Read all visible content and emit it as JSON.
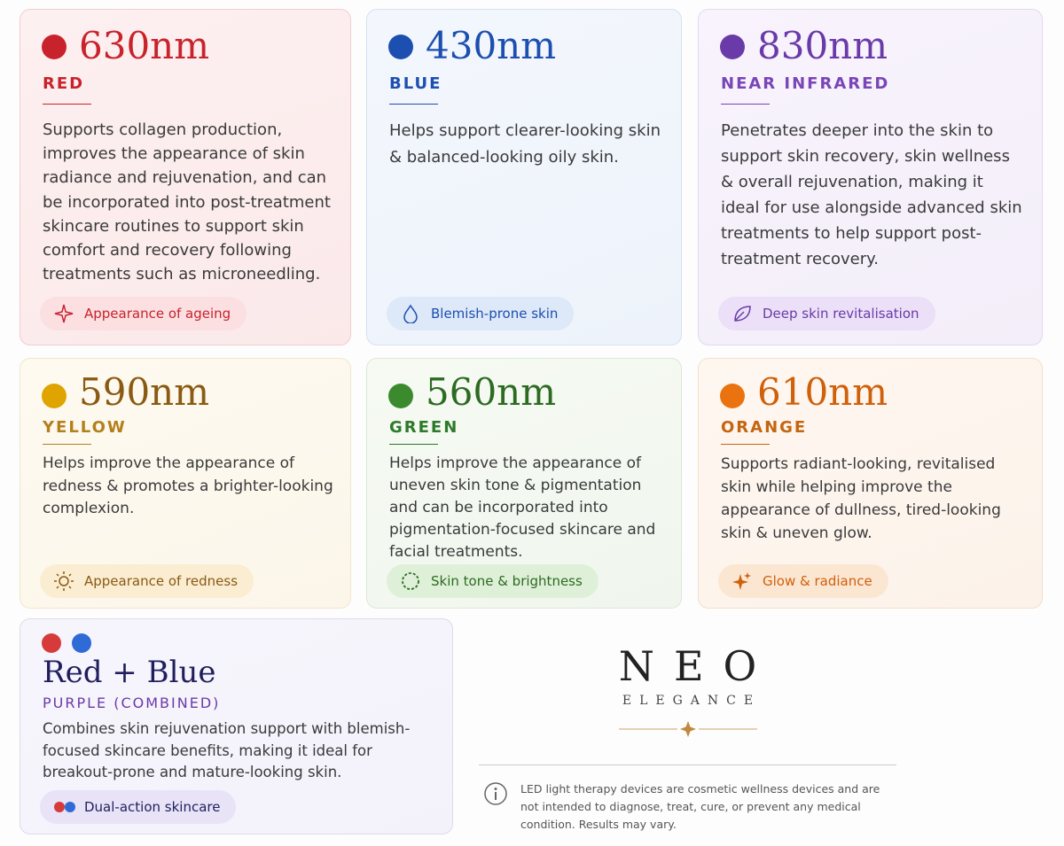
{
  "cards": [
    {
      "heading": "630nm",
      "name": "RED",
      "description": "Supports collagen production, improves the appearance of skin radiance and rejuvenation, and can be incorporated into post-treatment skincare routines to support skin comfort and recovery following treatments such as microneedling.",
      "tag": "Appearance of ageing"
    },
    {
      "heading": "430nm",
      "name": "BLUE",
      "description": "Helps support clearer-looking skin & balanced-looking oily skin.",
      "tag": "Blemish-prone skin"
    },
    {
      "heading": "830nm",
      "name": "NEAR INFRARED",
      "description": "Penetrates deeper into the skin to support skin recovery, skin wellness & overall rejuvenation, making it ideal for use alongside advanced skin treatments to help support post-treatment recovery.",
      "tag": "Deep skin revitalisation"
    },
    {
      "heading": "590nm",
      "name": "YELLOW",
      "description": "Helps improve the appearance of redness & promotes a brighter-looking complexion.",
      "tag": "Appearance of redness"
    },
    {
      "heading": "560nm",
      "name": "GREEN",
      "description": "Helps improve the appearance of uneven skin tone & pigmentation and can be incorporated into pigmentation-focused skincare and facial treatments.",
      "tag": "Skin tone & brightness"
    },
    {
      "heading": "610nm",
      "name": "ORANGE",
      "description": "Supports radiant-looking, revitalised skin while helping improve the appearance of dullness, tired-looking skin & uneven glow.",
      "tag": "Glow & radiance"
    },
    {
      "heading": "Red + Blue",
      "name": "PURPLE (COMBINED)",
      "description": "Combines skin rejuvenation support with blemish-focused skincare benefits, making it ideal for breakout-prone and mature-looking skin.",
      "tag": "Dual-action skincare"
    }
  ],
  "brand": {
    "name": "NEO",
    "subname": "ELEGANCE"
  },
  "disclaimer": "LED light therapy devices are cosmetic wellness devices and are not intended to diagnose, treat, cure, or prevent any medical condition. Results may vary."
}
